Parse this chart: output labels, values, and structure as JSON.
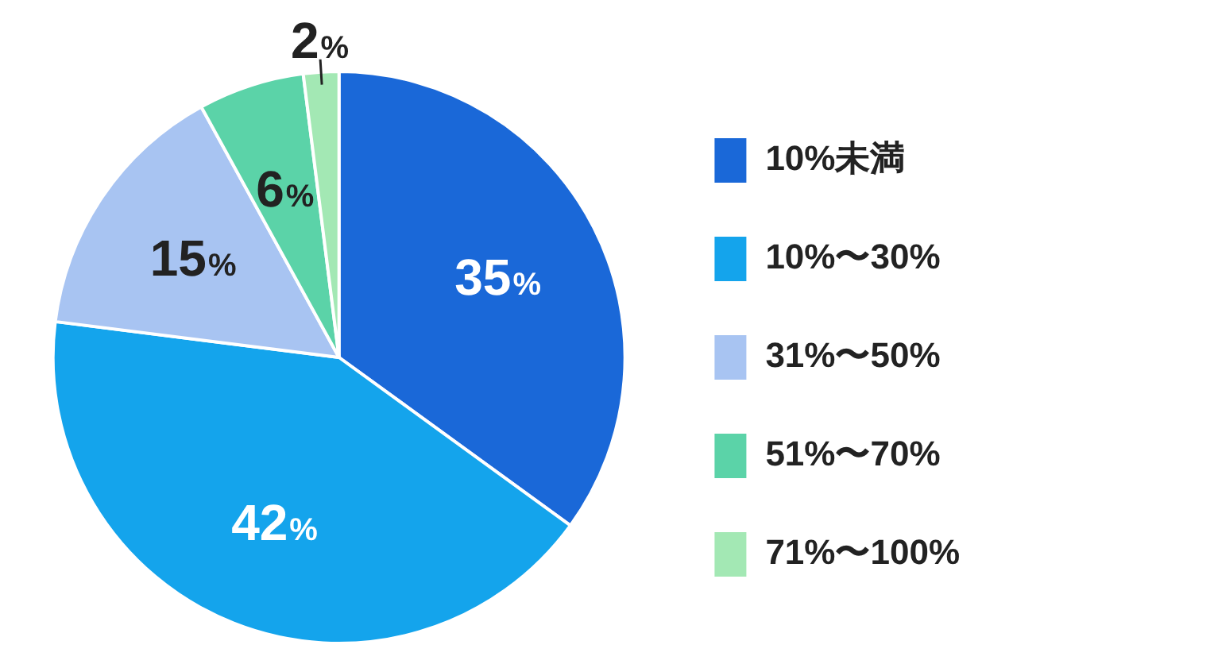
{
  "chart_data": {
    "type": "pie",
    "categories": [
      "10%未満",
      "10%〜30%",
      "31%〜50%",
      "51%〜70%",
      "71%〜100%"
    ],
    "values": [
      35,
      42,
      15,
      6,
      2
    ],
    "colors": [
      "#1a68d8",
      "#14a4ec",
      "#a8c4f2",
      "#5bd3a8",
      "#a3e8b4"
    ],
    "value_labels": [
      "35%",
      "42%",
      "15%",
      "6%",
      "2%"
    ],
    "legend": "right"
  }
}
